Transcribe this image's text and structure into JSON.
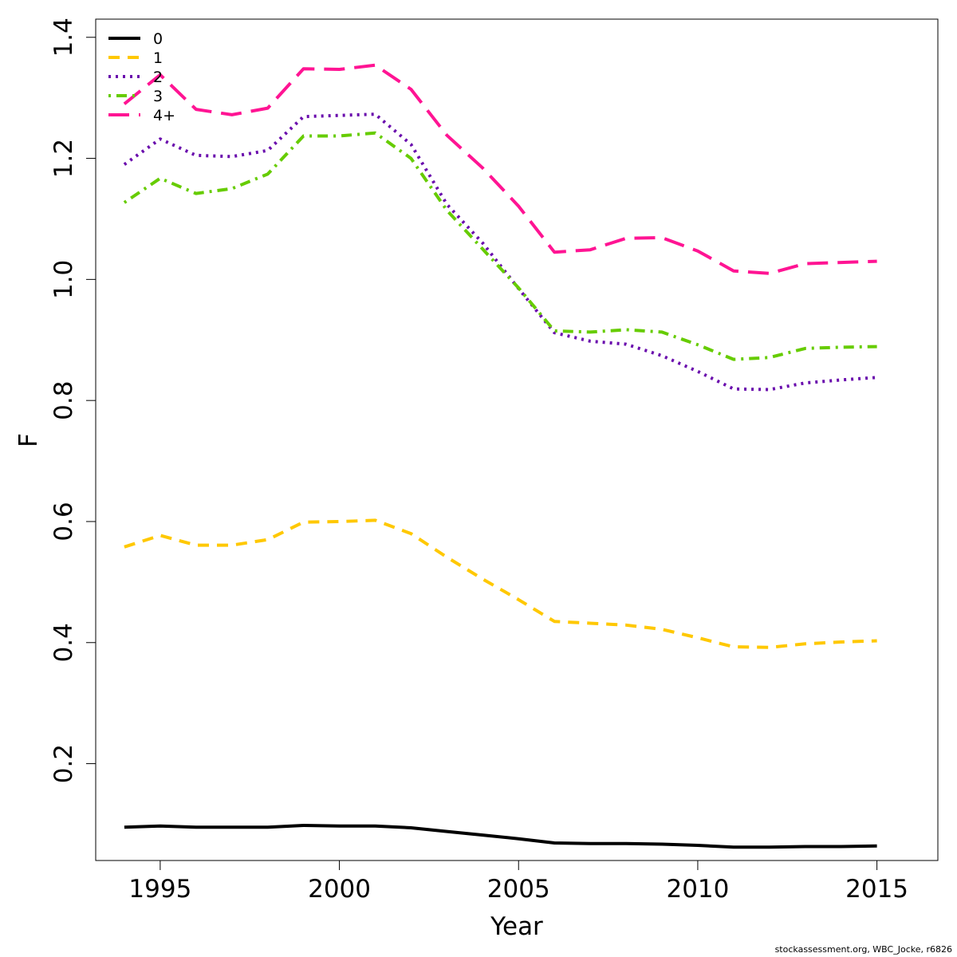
{
  "chart_data": {
    "type": "line",
    "title": "",
    "xlabel": "Year",
    "ylabel": "F",
    "xlim": [
      1993.2,
      2016.7
    ],
    "ylim": [
      0.04,
      1.43
    ],
    "x_ticks": [
      1995,
      2000,
      2005,
      2010,
      2015
    ],
    "x_tick_labels": [
      "1995",
      "2000",
      "2005",
      "2010",
      "2015"
    ],
    "y_ticks": [
      0.2,
      0.4,
      0.6,
      0.8,
      1.0,
      1.2,
      1.4
    ],
    "y_tick_labels": [
      "0.2",
      "0.4",
      "0.6",
      "0.8",
      "1.0",
      "1.2",
      "1.4"
    ],
    "grid": false,
    "legend_position": "top-left",
    "x": [
      1994,
      1995,
      1996,
      1997,
      1998,
      1999,
      2000,
      2001,
      2002,
      2003,
      2004,
      2005,
      2006,
      2007,
      2008,
      2009,
      2010,
      2011,
      2012,
      2013,
      2014,
      2015
    ],
    "series": [
      {
        "name": "0",
        "color": "#000000",
        "dash": "solid",
        "values": [
          0.095,
          0.097,
          0.095,
          0.095,
          0.095,
          0.098,
          0.097,
          0.097,
          0.094,
          0.088,
          0.082,
          0.076,
          0.069,
          0.068,
          0.068,
          0.067,
          0.065,
          0.062,
          0.062,
          0.063,
          0.063,
          0.064
        ]
      },
      {
        "name": "1",
        "color": "#FFC800",
        "dash": "dashed",
        "values": [
          0.558,
          0.577,
          0.561,
          0.561,
          0.57,
          0.599,
          0.6,
          0.602,
          0.58,
          0.541,
          0.505,
          0.471,
          0.435,
          0.432,
          0.429,
          0.422,
          0.408,
          0.393,
          0.392,
          0.398,
          0.401,
          0.403
        ]
      },
      {
        "name": "2",
        "color": "#6A0DAD",
        "dash": "dotted",
        "values": [
          1.19,
          1.232,
          1.205,
          1.203,
          1.213,
          1.269,
          1.271,
          1.273,
          1.223,
          1.124,
          1.06,
          0.985,
          0.912,
          0.898,
          0.893,
          0.874,
          0.848,
          0.819,
          0.818,
          0.829,
          0.834,
          0.838
        ]
      },
      {
        "name": "3",
        "color": "#66CC00",
        "dash": "dotdash",
        "values": [
          1.127,
          1.167,
          1.142,
          1.15,
          1.174,
          1.237,
          1.237,
          1.242,
          1.2,
          1.114,
          1.05,
          0.986,
          0.915,
          0.913,
          0.917,
          0.913,
          0.892,
          0.868,
          0.871,
          0.886,
          0.888,
          0.889
        ]
      },
      {
        "name": "4+",
        "color": "#FF1493",
        "dash": "longdash",
        "values": [
          1.29,
          1.338,
          1.281,
          1.272,
          1.283,
          1.348,
          1.347,
          1.354,
          1.314,
          1.238,
          1.184,
          1.121,
          1.045,
          1.049,
          1.068,
          1.069,
          1.047,
          1.014,
          1.01,
          1.026,
          1.028,
          1.03
        ]
      }
    ]
  },
  "footer": {
    "credit": "stockassessment.org, WBC_Jocke, r6826"
  }
}
